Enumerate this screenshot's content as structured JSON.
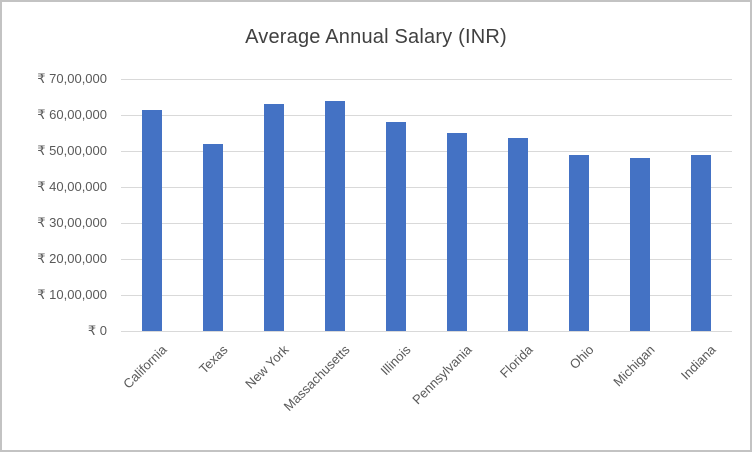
{
  "chart_data": {
    "type": "bar",
    "title": "Average Annual Salary (INR)",
    "categories": [
      "California",
      "Texas",
      "New York",
      "Massachusetts",
      "Illinois",
      "Pennsylvania",
      "Florida",
      "Ohio",
      "Michigan",
      "Indiana"
    ],
    "values": [
      6150000,
      5200000,
      6300000,
      6400000,
      5800000,
      5500000,
      5350000,
      4900000,
      4800000,
      4900000
    ],
    "xlabel": "",
    "ylabel": "",
    "ylim": [
      0,
      7000000
    ],
    "y_tick_values": [
      7000000,
      6000000,
      5000000,
      4000000,
      3000000,
      2000000,
      1000000,
      0
    ],
    "y_tick_labels": [
      "₹ 70,00,000",
      "₹ 60,00,000",
      "₹ 50,00,000",
      "₹ 40,00,000",
      "₹ 30,00,000",
      "₹ 20,00,000",
      "₹ 10,00,000",
      "₹ 0"
    ],
    "grid": true,
    "legend": "none",
    "bar_color": "#4472C4",
    "gridline_color": "#D9D9D9",
    "axis_label_color": "#595959",
    "title_color": "#404040"
  }
}
